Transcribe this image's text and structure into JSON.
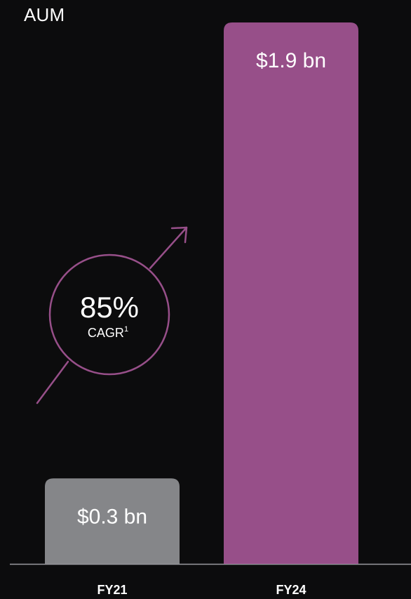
{
  "title": "AUM",
  "colors": {
    "background": "#0c0c0d",
    "bar_fy21": "#858689",
    "bar_fy24": "#974f89",
    "accent": "#974f89",
    "axis": "#9a9ba0"
  },
  "annotation": {
    "value": "85%",
    "label": "CAGR",
    "footnote": "1",
    "icon": "diagonal-arrow-icon"
  },
  "chart_data": {
    "type": "bar",
    "title": "AUM",
    "categories": [
      "FY21",
      "FY24"
    ],
    "values": [
      0.3,
      1.9
    ],
    "unit": "bn",
    "data_labels": [
      "$0.3 bn",
      "$1.9 bn"
    ],
    "ylim": [
      0,
      2.0
    ],
    "grid": false,
    "legend": "none",
    "xlabel": "",
    "ylabel": ""
  }
}
